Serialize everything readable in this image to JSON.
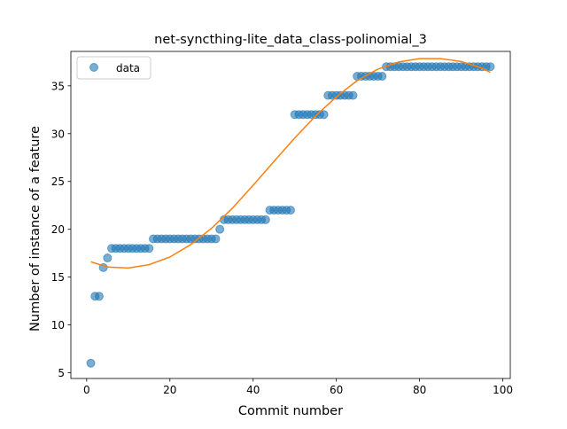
{
  "chart_data": {
    "type": "scatter",
    "title": "net-syncthing-lite_data_class-polinomial_3",
    "xlabel": "Commit number",
    "ylabel": "Number of instance of a feature",
    "xlim": [
      -3.8,
      101.8
    ],
    "ylim": [
      4.4,
      38.6
    ],
    "xticks": [
      0,
      20,
      40,
      60,
      80,
      100
    ],
    "yticks": [
      5,
      10,
      15,
      20,
      25,
      30,
      35
    ],
    "legend": {
      "position": "top-left",
      "entries": [
        "data"
      ]
    },
    "colors": {
      "data": "#1f77b4",
      "fit": "#ff7f0e"
    },
    "series": [
      {
        "name": "data",
        "kind": "scatter",
        "x": [
          1,
          2,
          3,
          4,
          5,
          6,
          7,
          8,
          9,
          10,
          11,
          12,
          13,
          14,
          15,
          16,
          17,
          18,
          19,
          20,
          21,
          22,
          23,
          24,
          25,
          26,
          27,
          28,
          29,
          30,
          31,
          32,
          33,
          34,
          35,
          36,
          37,
          38,
          39,
          40,
          41,
          42,
          43,
          44,
          45,
          46,
          47,
          48,
          49,
          50,
          51,
          52,
          53,
          54,
          55,
          56,
          57,
          58,
          59,
          60,
          61,
          62,
          63,
          64,
          65,
          66,
          67,
          68,
          69,
          70,
          71,
          72,
          73,
          74,
          75,
          76,
          77,
          78,
          79,
          80,
          81,
          82,
          83,
          84,
          85,
          86,
          87,
          88,
          89,
          90,
          91,
          92,
          93,
          94,
          95,
          96,
          97
        ],
        "y": [
          6,
          13,
          13,
          16,
          17,
          18,
          18,
          18,
          18,
          18,
          18,
          18,
          18,
          18,
          18,
          19,
          19,
          19,
          19,
          19,
          19,
          19,
          19,
          19,
          19,
          19,
          19,
          19,
          19,
          19,
          19,
          20,
          21,
          21,
          21,
          21,
          21,
          21,
          21,
          21,
          21,
          21,
          21,
          22,
          22,
          22,
          22,
          22,
          22,
          32,
          32,
          32,
          32,
          32,
          32,
          32,
          32,
          34,
          34,
          34,
          34,
          34,
          34,
          34,
          36,
          36,
          36,
          36,
          36,
          36,
          36,
          37,
          37,
          37,
          37,
          37,
          37,
          37,
          37,
          37,
          37,
          37,
          37,
          37,
          37,
          37,
          37,
          37,
          37,
          37,
          37,
          37,
          37,
          37,
          37,
          37,
          37
        ]
      },
      {
        "kind": "line",
        "x": [
          1,
          5,
          10,
          15,
          20,
          25,
          30,
          35,
          40,
          45,
          50,
          55,
          60,
          65,
          70,
          75,
          80,
          85,
          90,
          95,
          97
        ],
        "y": [
          16.6,
          16.05,
          15.95,
          16.3,
          17.1,
          18.4,
          20.1,
          22.2,
          24.6,
          27.1,
          29.55,
          31.85,
          33.85,
          35.55,
          36.75,
          37.5,
          37.85,
          37.85,
          37.55,
          36.85,
          36.4
        ]
      }
    ]
  }
}
